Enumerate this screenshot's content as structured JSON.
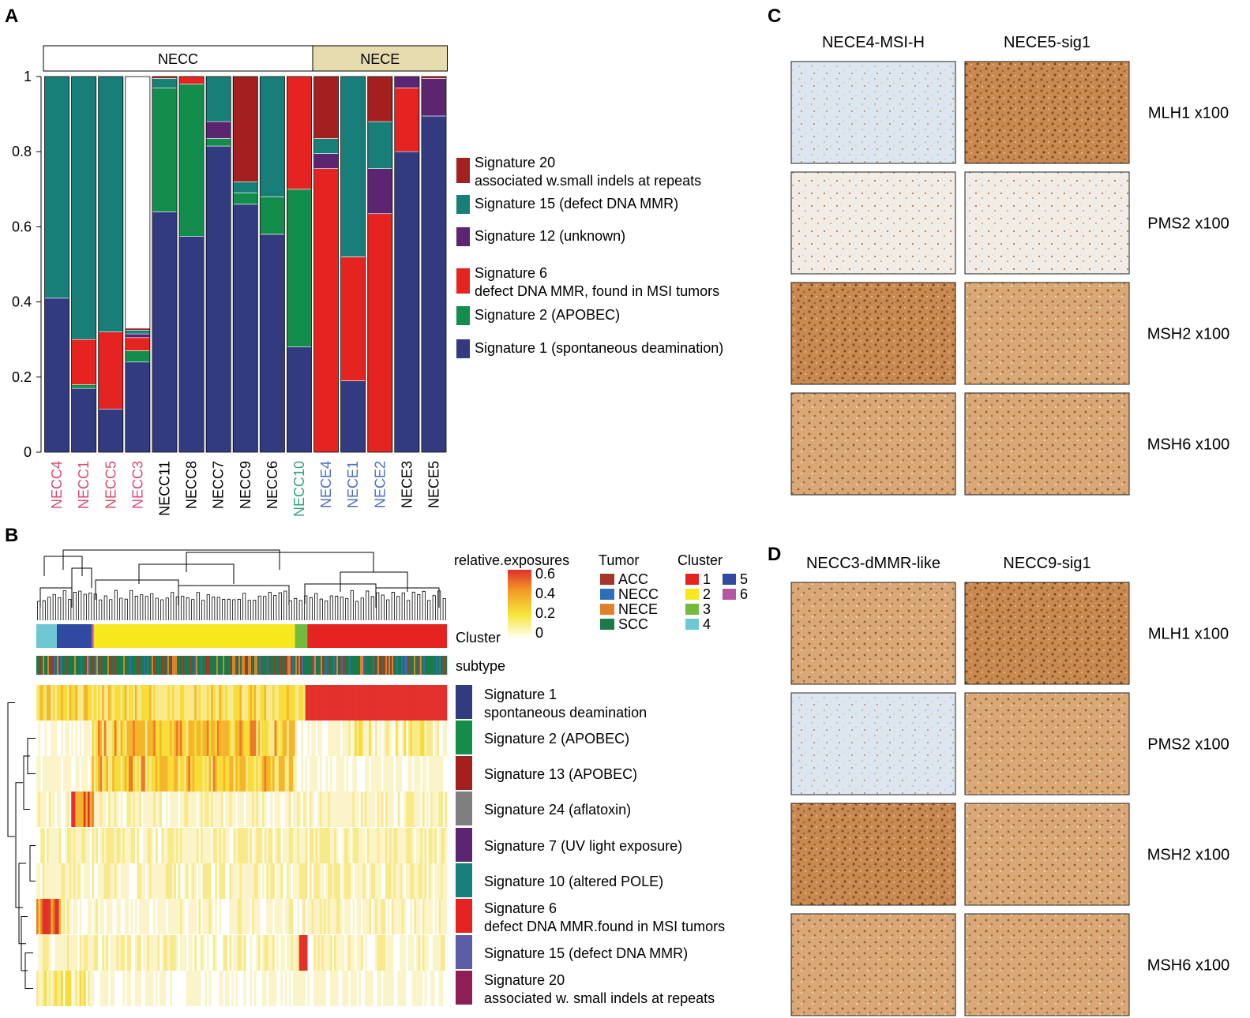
{
  "panel_letters": {
    "a": "A",
    "b": "B",
    "c": "C",
    "d": "D"
  },
  "colors": {
    "sig1": "#323a80",
    "sig2": "#138d4b",
    "sig6": "#e52421",
    "sig12": "#5b2572",
    "sig15": "#177f78",
    "sig20": "#a3201f",
    "nece_header": "#e6dcae",
    "pink_label": "#d94a6b",
    "blue_label": "#4a6fbf",
    "green_label": "#2fa37a"
  },
  "chart_data": [
    {
      "type": "stacked-bar",
      "title": "",
      "groups": [
        {
          "label": "NECC",
          "span": 10
        },
        {
          "label": "NECE",
          "span": 5
        }
      ],
      "categories": [
        "NECC4",
        "NECC1",
        "NECC5",
        "NECC3",
        "NECC11",
        "NECC8",
        "NECC7",
        "NECC9",
        "NECC6",
        "NECC10",
        "NECE4",
        "NECE1",
        "NECE2",
        "NECE3",
        "NECE5"
      ],
      "category_label_colors": [
        "pink",
        "pink",
        "pink",
        "pink",
        "black",
        "black",
        "black",
        "black",
        "black",
        "green",
        "blue",
        "blue",
        "blue",
        "black",
        "black"
      ],
      "ylim": [
        0,
        1
      ],
      "yticks": [
        "0",
        "0.2",
        "0.4",
        "0.6",
        "0.8",
        "1"
      ],
      "series": [
        {
          "name": "Signature 1 (spontaneous deamination)",
          "color_key": "sig1",
          "values": [
            0.41,
            0.17,
            0.115,
            0.24,
            0.64,
            0.575,
            0.815,
            0.66,
            0.58,
            0.28,
            0.0,
            0.19,
            0.0,
            0.8,
            0.895
          ]
        },
        {
          "name": "Signature 2 (APOBEC)",
          "color_key": "sig2",
          "values": [
            0,
            0.01,
            0,
            0.03,
            0.33,
            0.405,
            0.02,
            0.03,
            0.1,
            0.42,
            0,
            0,
            0,
            0,
            0
          ]
        },
        {
          "name": "Signature 6 defect DNA MMR, found in MSI tumors",
          "color_key": "sig6",
          "values": [
            0,
            0.12,
            0.205,
            0.035,
            0,
            0.02,
            0,
            0,
            0,
            0.3,
            0.755,
            0.33,
            0.635,
            0.17,
            0
          ]
        },
        {
          "name": "Signature 12 (unknown)",
          "color_key": "sig12",
          "values": [
            0,
            0,
            0,
            0.01,
            0,
            0,
            0.045,
            0,
            0,
            0,
            0.04,
            0,
            0.12,
            0.03,
            0.1
          ]
        },
        {
          "name": "Signature 15 (defect DNA MMR)",
          "color_key": "sig15",
          "values": [
            0.59,
            0.7,
            0.68,
            0.01,
            0.025,
            0,
            0.12,
            0.03,
            0.32,
            0,
            0.04,
            0.48,
            0.125,
            0,
            0
          ]
        },
        {
          "name": "Signature 20 associated w.small indels at repeats",
          "color_key": "sig20",
          "values": [
            0,
            0,
            0,
            0.005,
            0.005,
            0,
            0,
            0.28,
            0,
            0,
            0.165,
            0,
            0.12,
            0,
            0.005
          ]
        }
      ]
    },
    {
      "type": "heatmap",
      "title": "relative.exposures",
      "colorbar_ticks": [
        "0.6",
        "0.4",
        "0.2",
        "0"
      ],
      "row_labels": [
        [
          "Signature 1",
          "spontaneous deamination"
        ],
        [
          "Signature 2 (APOBEC)"
        ],
        [
          "Signature 13 (APOBEC)"
        ],
        [
          "Signature 24 (aflatoxin)"
        ],
        [
          "Signature 7 (UV light exposure)"
        ],
        [
          "Signature 10 (altered POLE)"
        ],
        [
          "Signature 6",
          "defect DNA MMR.found in MSI tumors"
        ],
        [
          "Signature 15 (defect DNA MMR)"
        ],
        [
          "Signature 20",
          "associated w. small indels at repeats"
        ]
      ],
      "row_colors": [
        "#323a80",
        "#138d4b",
        "#a3201f",
        "#7f7f7f",
        "#5b2572",
        "#177f78",
        "#e52421",
        "#5b5ea6",
        "#8e1f54"
      ],
      "annotation_rows": [
        "Cluster",
        "subtype"
      ],
      "tumor_legend_title": "Tumor",
      "tumor_legend": [
        {
          "label": "ACC",
          "color": "#a6352a"
        },
        {
          "label": "NECC",
          "color": "#2c6fb7"
        },
        {
          "label": "NECE",
          "color": "#e0802a"
        },
        {
          "label": "SCC",
          "color": "#1a7a4a"
        }
      ],
      "cluster_legend_title": "Cluster",
      "cluster_legend": [
        {
          "label": "1",
          "color": "#e52421"
        },
        {
          "label": "2",
          "color": "#f6e81c"
        },
        {
          "label": "3",
          "color": "#72bb3f"
        },
        {
          "label": "4",
          "color": "#6ec7d3"
        },
        {
          "label": "5",
          "color": "#2f4aa0"
        },
        {
          "label": "6",
          "color": "#b4579e"
        }
      ],
      "cluster_track": [
        {
          "cluster": "4",
          "fraction": 0.05
        },
        {
          "cluster": "5",
          "fraction": 0.085
        },
        {
          "cluster": "6",
          "fraction": 0.005
        },
        {
          "cluster": "2",
          "fraction": 0.49
        },
        {
          "cluster": "3",
          "fraction": 0.03
        },
        {
          "cluster": "1",
          "fraction": 0.34
        }
      ]
    }
  ],
  "panel_c": {
    "columns": [
      "NECE4-MSI-H",
      "NECE5-sig1"
    ],
    "rows": [
      "MLH1 x100",
      "PMS2 x100",
      "MSH2 x100",
      "MSH6 x100"
    ]
  },
  "panel_d": {
    "columns": [
      "NECC3-dMMR-like",
      "NECC9-sig1"
    ],
    "rows": [
      "MLH1 x100",
      "PMS2 x100",
      "MSH2 x100",
      "MSH6 x100"
    ]
  }
}
